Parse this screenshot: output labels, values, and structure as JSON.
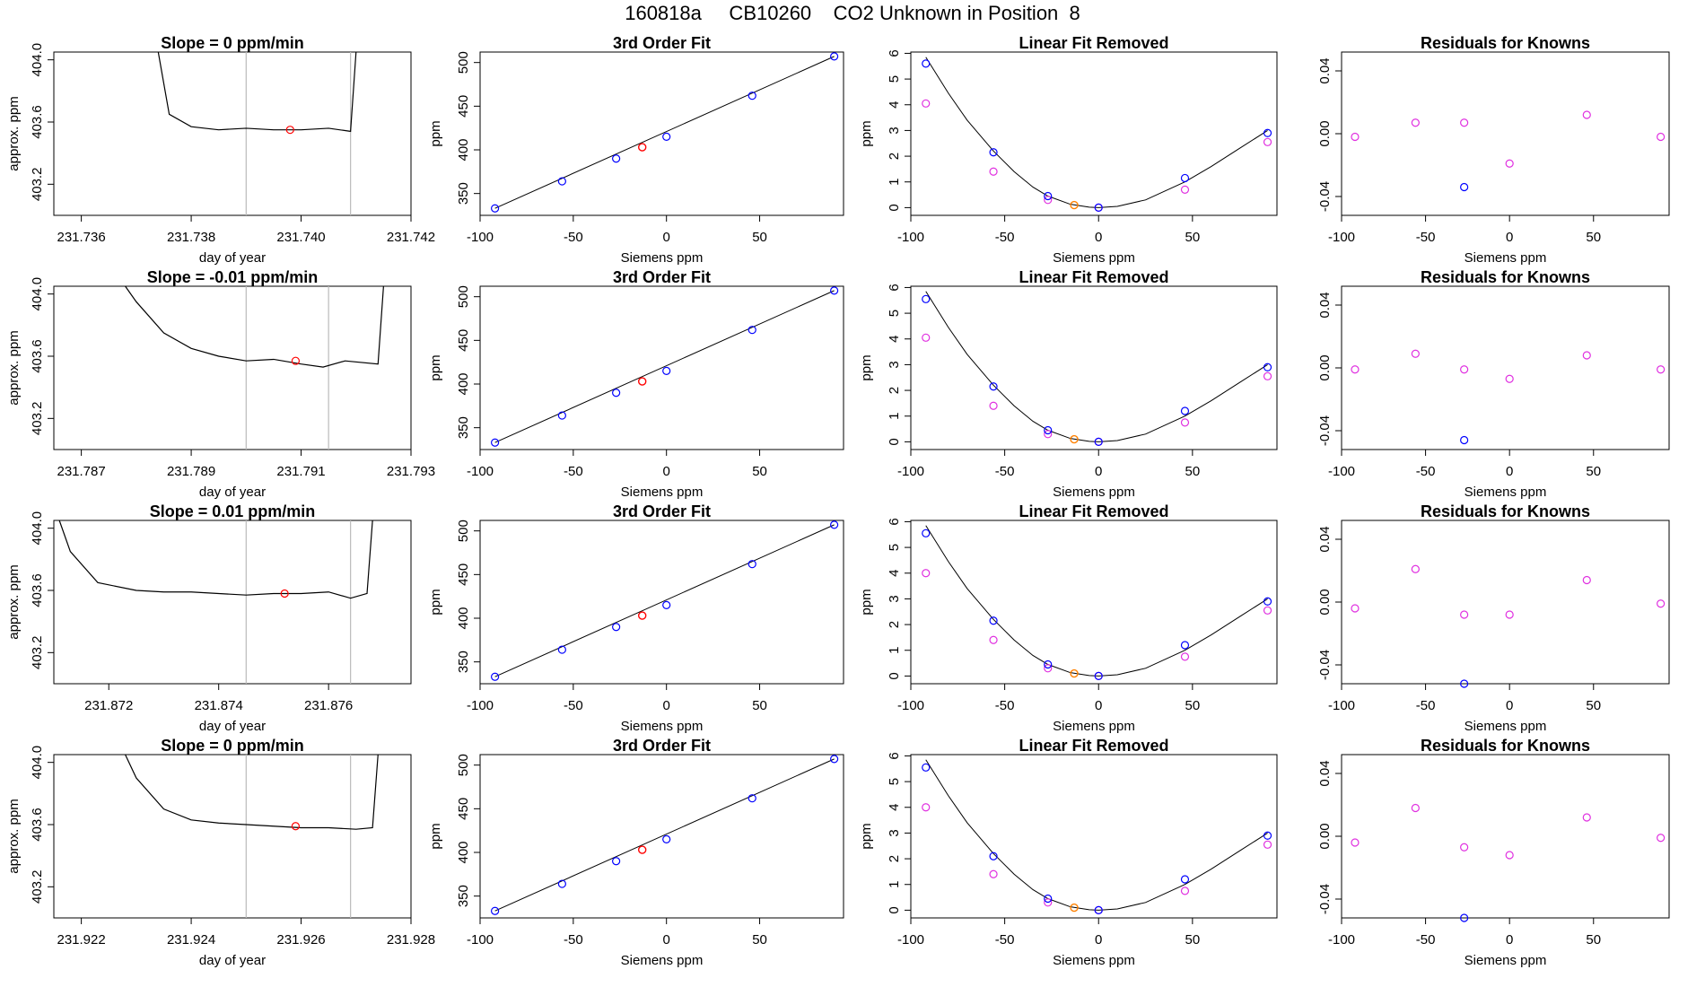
{
  "page": {
    "title": "160818a     CB10260    CO2 Unknown in Position  8"
  },
  "colors": {
    "known": "#0000ff",
    "known_residual": "#e030e0",
    "unknown_fit": "#ff0000",
    "unknown_linear": "#ff8000",
    "trace": "#000000",
    "window_line": "#bbbbbb",
    "curve": "#000000"
  },
  "chart_data": [
    {
      "type": "line",
      "title": "Slope =  0  ppm/min",
      "xlabel": "day of year",
      "ylabel": "approx. ppm",
      "xlim": [
        231.7355,
        231.742
      ],
      "ylim": [
        403.0,
        404.05
      ],
      "xticks": [
        "231.736",
        "231.738",
        "231.740",
        "231.742"
      ],
      "xtick_values": [
        231.736,
        231.738,
        231.74,
        231.742
      ],
      "yticks": [
        "403.2",
        "403.6",
        "404.0"
      ],
      "ytick_values": [
        403.2,
        403.6,
        404.0
      ],
      "window": [
        231.739,
        231.7409
      ],
      "trace_x": [
        231.7374,
        231.7376,
        231.738,
        231.7385,
        231.739,
        231.7395,
        231.74,
        231.7405,
        231.7409
      ],
      "trace_y": [
        404.05,
        403.65,
        403.57,
        403.55,
        403.56,
        403.55,
        403.55,
        403.56,
        403.54
      ],
      "trace_end": {
        "x": 231.741,
        "y": 404.05
      },
      "marker": {
        "x": 231.7398,
        "y": 403.55
      }
    },
    {
      "type": "scatter",
      "title": "3rd Order Fit",
      "xlabel": "Siemens ppm",
      "ylabel": "ppm",
      "xlim": [
        -100,
        95
      ],
      "ylim": [
        325,
        512
      ],
      "xticks": [
        "-100",
        "-50",
        "0",
        "50"
      ],
      "xtick_values": [
        -100,
        -50,
        0,
        50
      ],
      "yticks": [
        "350",
        "400",
        "450",
        "500"
      ],
      "ytick_values": [
        350,
        400,
        450,
        500
      ],
      "knowns_x": [
        -92,
        -56,
        -27,
        0,
        46,
        90
      ],
      "knowns_y": [
        333,
        364,
        390,
        415,
        462,
        507
      ],
      "unknown": {
        "x": -13,
        "y": 403
      },
      "fit_line": [
        [
          -92,
          333
        ],
        [
          90,
          507
        ]
      ]
    },
    {
      "type": "scatter",
      "title": "Linear Fit Removed",
      "xlabel": "Siemens ppm",
      "ylabel": "ppm",
      "xlim": [
        -100,
        95
      ],
      "ylim": [
        -0.3,
        6.05
      ],
      "xticks": [
        "-100",
        "-50",
        "0",
        "50"
      ],
      "xtick_values": [
        -100,
        -50,
        0,
        50
      ],
      "yticks": [
        "0",
        "1",
        "2",
        "3",
        "4",
        "5",
        "6"
      ],
      "ytick_values": [
        0,
        1,
        2,
        3,
        4,
        5,
        6
      ],
      "knowns_x": [
        -92,
        -56,
        -27,
        0,
        46,
        90
      ],
      "knowns_y": [
        5.6,
        2.15,
        0.45,
        0.0,
        1.15,
        2.9
      ],
      "knowns_linear_y": [
        4.05,
        1.4,
        0.3,
        0.0,
        0.7,
        2.55
      ],
      "unknown": {
        "x": -13,
        "y": 0.1
      },
      "curve": {
        "x": [
          -92,
          -80,
          -70,
          -56,
          -45,
          -35,
          -27,
          -15,
          -5,
          0,
          10,
          25,
          46,
          60,
          75,
          90
        ],
        "y": [
          5.85,
          4.45,
          3.4,
          2.2,
          1.4,
          0.8,
          0.45,
          0.13,
          0.02,
          0.0,
          0.05,
          0.3,
          1.0,
          1.6,
          2.3,
          3.0
        ]
      }
    },
    {
      "type": "scatter",
      "title": "Residuals for Knowns",
      "xlabel": "Siemens ppm",
      "ylabel": "",
      "xlim": [
        -100,
        95
      ],
      "ylim": [
        -0.052,
        0.052
      ],
      "xticks": [
        "-100",
        "-50",
        "0",
        "50"
      ],
      "xtick_values": [
        -100,
        -50,
        0,
        50
      ],
      "yticks": [
        "-0.04",
        "0.00",
        "0.04"
      ],
      "ytick_values": [
        -0.04,
        0.0,
        0.04
      ],
      "knowns_x": [
        -27
      ],
      "knowns_y": [
        -0.034
      ],
      "residuals_x": [
        -92,
        -56,
        -27,
        0,
        46,
        90
      ],
      "residuals_y": [
        -0.002,
        0.007,
        0.007,
        -0.019,
        0.012,
        -0.002
      ]
    },
    {
      "type": "line",
      "title": "Slope =  -0.01  ppm/min",
      "xlabel": "day of year",
      "ylabel": "approx. ppm",
      "xlim": [
        231.7865,
        231.793
      ],
      "ylim": [
        403.0,
        404.05
      ],
      "xticks": [
        "231.787",
        "231.789",
        "231.791",
        "231.793"
      ],
      "xtick_values": [
        231.787,
        231.789,
        231.791,
        231.793
      ],
      "yticks": [
        "403.2",
        "403.6",
        "404.0"
      ],
      "ytick_values": [
        403.2,
        403.6,
        404.0
      ],
      "window": [
        231.79,
        231.7915
      ],
      "trace_x": [
        231.7878,
        231.788,
        231.7885,
        231.789,
        231.7895,
        231.79,
        231.7905,
        231.791,
        231.7914,
        231.7918,
        231.7924
      ],
      "trace_y": [
        404.05,
        403.95,
        403.75,
        403.65,
        403.6,
        403.57,
        403.58,
        403.55,
        403.53,
        403.57,
        403.55
      ],
      "trace_end": {
        "x": 231.7925,
        "y": 404.05
      },
      "marker": {
        "x": 231.7909,
        "y": 403.57
      }
    },
    {
      "type": "scatter",
      "title": "3rd Order Fit",
      "xlabel": "Siemens ppm",
      "ylabel": "ppm",
      "xlim": [
        -100,
        95
      ],
      "ylim": [
        325,
        512
      ],
      "xticks": [
        "-100",
        "-50",
        "0",
        "50"
      ],
      "xtick_values": [
        -100,
        -50,
        0,
        50
      ],
      "yticks": [
        "350",
        "400",
        "450",
        "500"
      ],
      "ytick_values": [
        350,
        400,
        450,
        500
      ],
      "knowns_x": [
        -92,
        -56,
        -27,
        0,
        46,
        90
      ],
      "knowns_y": [
        333,
        364,
        390,
        415,
        462,
        507
      ],
      "unknown": {
        "x": -13,
        "y": 403
      },
      "fit_line": [
        [
          -92,
          333
        ],
        [
          90,
          507
        ]
      ]
    },
    {
      "type": "scatter",
      "title": "Linear Fit Removed",
      "xlabel": "Siemens ppm",
      "ylabel": "ppm",
      "xlim": [
        -100,
        95
      ],
      "ylim": [
        -0.3,
        6.05
      ],
      "xticks": [
        "-100",
        "-50",
        "0",
        "50"
      ],
      "xtick_values": [
        -100,
        -50,
        0,
        50
      ],
      "yticks": [
        "0",
        "1",
        "2",
        "3",
        "4",
        "5",
        "6"
      ],
      "ytick_values": [
        0,
        1,
        2,
        3,
        4,
        5,
        6
      ],
      "knowns_x": [
        -92,
        -56,
        -27,
        0,
        46,
        90
      ],
      "knowns_y": [
        5.55,
        2.15,
        0.45,
        0.0,
        1.2,
        2.9
      ],
      "knowns_linear_y": [
        4.05,
        1.4,
        0.3,
        0.0,
        0.75,
        2.55
      ],
      "unknown": {
        "x": -13,
        "y": 0.1
      },
      "curve": {
        "x": [
          -92,
          -80,
          -70,
          -56,
          -45,
          -35,
          -27,
          -15,
          -5,
          0,
          10,
          25,
          46,
          60,
          75,
          90
        ],
        "y": [
          5.85,
          4.45,
          3.4,
          2.2,
          1.4,
          0.8,
          0.45,
          0.13,
          0.02,
          0.0,
          0.05,
          0.3,
          1.0,
          1.6,
          2.3,
          3.0
        ]
      }
    },
    {
      "type": "scatter",
      "title": "Residuals for Knowns",
      "xlabel": "Siemens ppm",
      "ylabel": "",
      "xlim": [
        -100,
        95
      ],
      "ylim": [
        -0.052,
        0.052
      ],
      "xticks": [
        "-100",
        "-50",
        "0",
        "50"
      ],
      "xtick_values": [
        -100,
        -50,
        0,
        50
      ],
      "yticks": [
        "-0.04",
        "0.00",
        "0.04"
      ],
      "ytick_values": [
        -0.04,
        0.0,
        0.04
      ],
      "knowns_x": [
        -27
      ],
      "knowns_y": [
        -0.046
      ],
      "residuals_x": [
        -92,
        -56,
        -27,
        0,
        46,
        90
      ],
      "residuals_y": [
        -0.001,
        0.009,
        -0.001,
        -0.007,
        0.008,
        -0.001
      ]
    },
    {
      "type": "line",
      "title": "Slope =  0.01  ppm/min",
      "xlabel": "day of year",
      "ylabel": "approx. ppm",
      "xlim": [
        231.871,
        231.8775
      ],
      "ylim": [
        403.0,
        404.05
      ],
      "xticks": [
        "231.872",
        "231.874",
        "231.876"
      ],
      "xtick_values": [
        231.872,
        231.874,
        231.876
      ],
      "yticks": [
        "403.2",
        "403.6",
        "404.0"
      ],
      "ytick_values": [
        403.2,
        403.6,
        404.0
      ],
      "window": [
        231.8745,
        231.8764
      ],
      "trace_x": [
        231.8711,
        231.8713,
        231.8718,
        231.8725,
        231.873,
        231.8735,
        231.874,
        231.8745,
        231.875,
        231.8755,
        231.876,
        231.8764,
        231.8767
      ],
      "trace_y": [
        404.05,
        403.85,
        403.65,
        403.6,
        403.59,
        403.59,
        403.58,
        403.57,
        403.58,
        403.58,
        403.59,
        403.55,
        403.58
      ],
      "trace_end": {
        "x": 231.8768,
        "y": 404.05
      },
      "marker": {
        "x": 231.8752,
        "y": 403.58
      }
    },
    {
      "type": "scatter",
      "title": "3rd Order Fit",
      "xlabel": "Siemens ppm",
      "ylabel": "ppm",
      "xlim": [
        -100,
        95
      ],
      "ylim": [
        325,
        512
      ],
      "xticks": [
        "-100",
        "-50",
        "0",
        "50"
      ],
      "xtick_values": [
        -100,
        -50,
        0,
        50
      ],
      "yticks": [
        "350",
        "400",
        "450",
        "500"
      ],
      "ytick_values": [
        350,
        400,
        450,
        500
      ],
      "knowns_x": [
        -92,
        -56,
        -27,
        0,
        46,
        90
      ],
      "knowns_y": [
        333,
        364,
        390,
        415,
        462,
        507
      ],
      "unknown": {
        "x": -13,
        "y": 403
      },
      "fit_line": [
        [
          -92,
          333
        ],
        [
          90,
          507
        ]
      ]
    },
    {
      "type": "scatter",
      "title": "Linear Fit Removed",
      "xlabel": "Siemens ppm",
      "ylabel": "ppm",
      "xlim": [
        -100,
        95
      ],
      "ylim": [
        -0.3,
        6.05
      ],
      "xticks": [
        "-100",
        "-50",
        "0",
        "50"
      ],
      "xtick_values": [
        -100,
        -50,
        0,
        50
      ],
      "yticks": [
        "0",
        "1",
        "2",
        "3",
        "4",
        "5",
        "6"
      ],
      "ytick_values": [
        0,
        1,
        2,
        3,
        4,
        5,
        6
      ],
      "knowns_x": [
        -92,
        -56,
        -27,
        0,
        46,
        90
      ],
      "knowns_y": [
        5.55,
        2.15,
        0.45,
        0.0,
        1.2,
        2.9
      ],
      "knowns_linear_y": [
        4.0,
        1.4,
        0.3,
        0.0,
        0.75,
        2.55
      ],
      "unknown": {
        "x": -13,
        "y": 0.1
      },
      "curve": {
        "x": [
          -92,
          -80,
          -70,
          -56,
          -45,
          -35,
          -27,
          -15,
          -5,
          0,
          10,
          25,
          46,
          60,
          75,
          90
        ],
        "y": [
          5.85,
          4.45,
          3.4,
          2.2,
          1.4,
          0.8,
          0.45,
          0.13,
          0.02,
          0.0,
          0.05,
          0.3,
          1.0,
          1.6,
          2.3,
          3.0
        ]
      }
    },
    {
      "type": "scatter",
      "title": "Residuals for Knowns",
      "xlabel": "Siemens ppm",
      "ylabel": "",
      "xlim": [
        -100,
        95
      ],
      "ylim": [
        -0.052,
        0.052
      ],
      "xticks": [
        "-100",
        "-50",
        "0",
        "50"
      ],
      "xtick_values": [
        -100,
        -50,
        0,
        50
      ],
      "yticks": [
        "-0.04",
        "0.00",
        "0.04"
      ],
      "ytick_values": [
        -0.04,
        0.0,
        0.04
      ],
      "knowns_x": [
        -27
      ],
      "knowns_y": [
        -0.052
      ],
      "residuals_x": [
        -92,
        -56,
        -27,
        0,
        46,
        90
      ],
      "residuals_y": [
        -0.004,
        0.021,
        -0.008,
        -0.008,
        0.014,
        -0.001
      ]
    },
    {
      "type": "line",
      "title": "Slope =  0  ppm/min",
      "xlabel": "day of year",
      "ylabel": "approx. ppm",
      "xlim": [
        231.9215,
        231.928
      ],
      "ylim": [
        403.0,
        404.05
      ],
      "xticks": [
        "231.922",
        "231.924",
        "231.926",
        "231.928"
      ],
      "xtick_values": [
        231.922,
        231.924,
        231.926,
        231.928
      ],
      "yticks": [
        "403.2",
        "403.6",
        "404.0"
      ],
      "ytick_values": [
        403.2,
        403.6,
        404.0
      ],
      "window": [
        231.925,
        231.9269
      ],
      "trace_x": [
        231.9228,
        231.923,
        231.9235,
        231.924,
        231.9245,
        231.925,
        231.9255,
        231.926,
        231.9265,
        231.927,
        231.9273
      ],
      "trace_y": [
        404.05,
        403.9,
        403.7,
        403.63,
        403.61,
        403.6,
        403.59,
        403.58,
        403.58,
        403.57,
        403.58
      ],
      "trace_end": {
        "x": 231.9274,
        "y": 404.05
      },
      "marker": {
        "x": 231.9259,
        "y": 403.59
      }
    },
    {
      "type": "scatter",
      "title": "3rd Order Fit",
      "xlabel": "Siemens ppm",
      "ylabel": "ppm",
      "xlim": [
        -100,
        95
      ],
      "ylim": [
        325,
        512
      ],
      "xticks": [
        "-100",
        "-50",
        "0",
        "50"
      ],
      "xtick_values": [
        -100,
        -50,
        0,
        50
      ],
      "yticks": [
        "350",
        "400",
        "450",
        "500"
      ],
      "ytick_values": [
        350,
        400,
        450,
        500
      ],
      "knowns_x": [
        -92,
        -56,
        -27,
        0,
        46,
        90
      ],
      "knowns_y": [
        333,
        364,
        390,
        415,
        462,
        507
      ],
      "unknown": {
        "x": -13,
        "y": 403
      },
      "fit_line": [
        [
          -92,
          333
        ],
        [
          90,
          507
        ]
      ]
    },
    {
      "type": "scatter",
      "title": "Linear Fit Removed",
      "xlabel": "Siemens ppm",
      "ylabel": "ppm",
      "xlim": [
        -100,
        95
      ],
      "ylim": [
        -0.3,
        6.05
      ],
      "xticks": [
        "-100",
        "-50",
        "0",
        "50"
      ],
      "xtick_values": [
        -100,
        -50,
        0,
        50
      ],
      "yticks": [
        "0",
        "1",
        "2",
        "3",
        "4",
        "5",
        "6"
      ],
      "ytick_values": [
        0,
        1,
        2,
        3,
        4,
        5,
        6
      ],
      "knowns_x": [
        -92,
        -56,
        -27,
        0,
        46,
        90
      ],
      "knowns_y": [
        5.55,
        2.1,
        0.45,
        0.0,
        1.2,
        2.9
      ],
      "knowns_linear_y": [
        4.0,
        1.4,
        0.3,
        0.0,
        0.75,
        2.55
      ],
      "unknown": {
        "x": -13,
        "y": 0.1
      },
      "curve": {
        "x": [
          -92,
          -80,
          -70,
          -56,
          -45,
          -35,
          -27,
          -15,
          -5,
          0,
          10,
          25,
          46,
          60,
          75,
          90
        ],
        "y": [
          5.85,
          4.45,
          3.4,
          2.2,
          1.4,
          0.8,
          0.45,
          0.13,
          0.02,
          0.0,
          0.05,
          0.3,
          1.0,
          1.6,
          2.3,
          3.0
        ]
      }
    },
    {
      "type": "scatter",
      "title": "Residuals for Knowns",
      "xlabel": "Siemens ppm",
      "ylabel": "",
      "xlim": [
        -100,
        95
      ],
      "ylim": [
        -0.052,
        0.052
      ],
      "xticks": [
        "-100",
        "-50",
        "0",
        "50"
      ],
      "xtick_values": [
        -100,
        -50,
        0,
        50
      ],
      "yticks": [
        "-0.04",
        "0.00",
        "0.04"
      ],
      "ytick_values": [
        -0.04,
        0.0,
        0.04
      ],
      "knowns_x": [
        -27
      ],
      "knowns_y": [
        -0.052
      ],
      "residuals_x": [
        -92,
        -56,
        -27,
        0,
        46,
        90
      ],
      "residuals_y": [
        -0.004,
        0.018,
        -0.007,
        -0.012,
        0.012,
        -0.001
      ]
    }
  ]
}
